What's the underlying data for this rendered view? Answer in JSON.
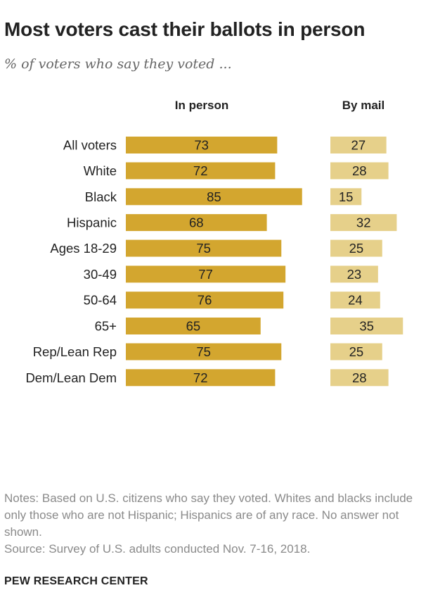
{
  "title": "Most voters cast their ballots in person",
  "subtitle": "% of voters who say they voted ...",
  "chart_data": {
    "type": "bar",
    "orientation": "horizontal",
    "categories": [
      "All voters",
      "White",
      "Black",
      "Hispanic",
      "Ages 18-29",
      "30-49",
      "50-64",
      "65+",
      "Rep/Lean Rep",
      "Dem/Lean Dem"
    ],
    "groups": [
      [
        "All voters"
      ],
      [
        "White",
        "Black",
        "Hispanic"
      ],
      [
        "Ages 18-29",
        "30-49",
        "50-64",
        "65+"
      ],
      [
        "Rep/Lean Rep",
        "Dem/Lean Dem"
      ]
    ],
    "series": [
      {
        "name": "In person",
        "values": [
          73,
          72,
          85,
          68,
          75,
          77,
          76,
          65,
          75,
          72
        ],
        "color": "#d3a62f"
      },
      {
        "name": "By mail",
        "values": [
          27,
          28,
          15,
          32,
          25,
          23,
          24,
          35,
          25,
          28
        ],
        "color": "#e6d08a"
      }
    ],
    "grid": false,
    "legend": "column headers"
  },
  "notes": [
    "Notes: Based on U.S. citizens who say they voted. Whites and blacks include only those who are not Hispanic; Hispanics are of any race. No answer not shown.",
    "Source: Survey of U.S. adults conducted Nov. 7-16, 2018."
  ],
  "brand": "PEW RESEARCH CENTER"
}
